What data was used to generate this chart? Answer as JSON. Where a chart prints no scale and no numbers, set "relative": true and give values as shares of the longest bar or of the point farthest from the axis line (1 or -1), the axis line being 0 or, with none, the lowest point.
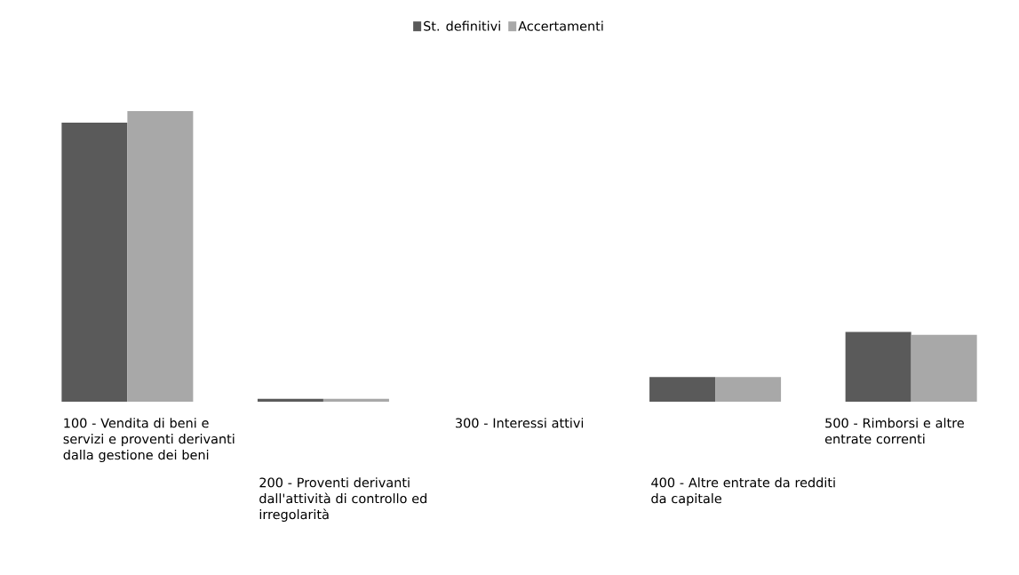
{
  "chart_data": {
    "type": "bar",
    "relative": true,
    "legend": "top",
    "categories": [
      "100 - Vendita di beni e servizi e proventi derivanti dalla gestione dei beni",
      "200 - Proventi derivanti dall'attività di controllo ed irregolarità",
      "300 - Interessi attivi",
      "400 - Altre entrate da redditi da capitale",
      "500 - Rimborsi e altre entrate correnti"
    ],
    "series": [
      {
        "name": "St. definitivi",
        "color": "#5a5a5a",
        "values": [
          0.96,
          0.01,
          0,
          0.085,
          0.24
        ]
      },
      {
        "name": "Accertamenti",
        "color": "#a8a8a8",
        "values": [
          1,
          0.01,
          0,
          0.085,
          0.23
        ]
      }
    ]
  }
}
